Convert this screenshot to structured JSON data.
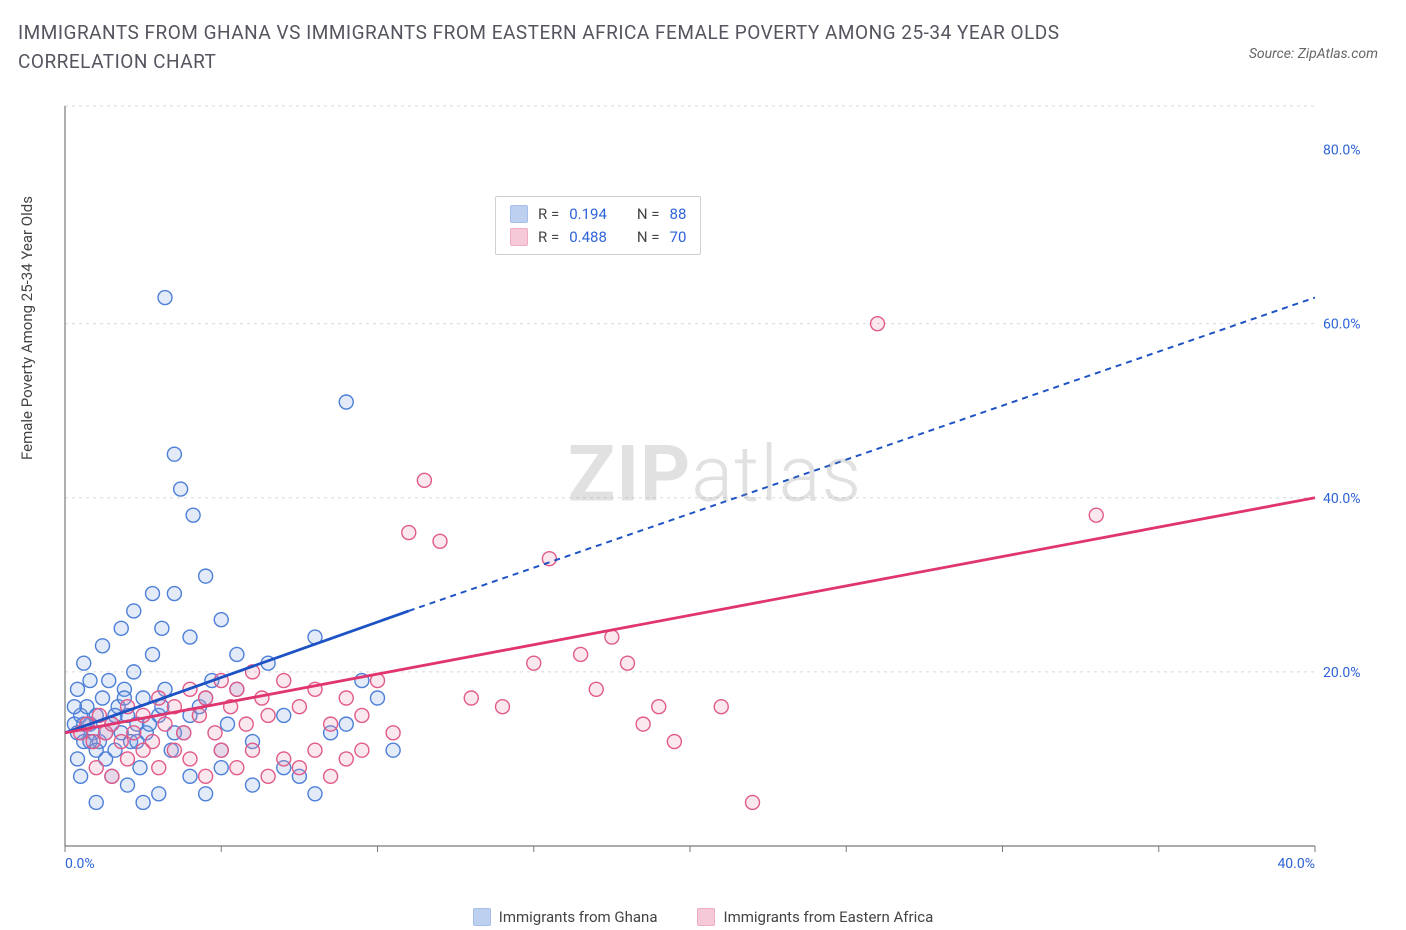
{
  "title": "IMMIGRANTS FROM GHANA VS IMMIGRANTS FROM EASTERN AFRICA FEMALE POVERTY AMONG 25-34 YEAR OLDS CORRELATION CHART",
  "source_label": "Source: ZipAtlas.com",
  "y_axis_label": "Female Poverty Among 25-34 Year Olds",
  "watermark_strong": "ZIP",
  "watermark_light": "atlas",
  "chart": {
    "type": "scatter",
    "background_color": "#ffffff",
    "grid_color": "#d8d8d8",
    "axis_color": "#7a7a7a",
    "tick_label_color": "#2e63d8",
    "xlim": [
      0,
      40
    ],
    "ylim": [
      0,
      85
    ],
    "x_ticks": [
      0,
      5,
      10,
      15,
      20,
      25,
      30,
      35,
      40
    ],
    "x_tick_labels": {
      "0": "0.0%",
      "40": "40.0%"
    },
    "y_grid_at": [
      20,
      40,
      60,
      85
    ],
    "y_tick_labels": {
      "20": "20.0%",
      "40": "40.0%",
      "60": "60.0%",
      "80": "80.0%"
    },
    "marker_radius": 7,
    "marker_stroke_width": 1.4,
    "marker_fill_opacity": 0.22,
    "trend_line_width": 2.8,
    "trend_dash": "6 5"
  },
  "series": [
    {
      "name": "Immigrants from Ghana",
      "color_stroke": "#4d7fd8",
      "color_fill": "#7ea3e3",
      "trend_color": "#1c52c4",
      "R": "0.194",
      "N": "88",
      "trend": {
        "x0": 0,
        "y0": 13,
        "x1_solid": 11,
        "y1_solid": 27,
        "x1_dash": 40,
        "y1_dash": 63
      },
      "points": [
        [
          0.3,
          14
        ],
        [
          0.4,
          13
        ],
        [
          0.5,
          15
        ],
        [
          0.6,
          12
        ],
        [
          0.7,
          16
        ],
        [
          0.8,
          14
        ],
        [
          0.9,
          13
        ],
        [
          1.0,
          15
        ],
        [
          1.1,
          12
        ],
        [
          1.2,
          17
        ],
        [
          1.3,
          10
        ],
        [
          1.4,
          19
        ],
        [
          1.5,
          14
        ],
        [
          1.6,
          11
        ],
        [
          1.7,
          16
        ],
        [
          1.8,
          13
        ],
        [
          1.9,
          18
        ],
        [
          2.0,
          15
        ],
        [
          2.1,
          12
        ],
        [
          2.2,
          20
        ],
        [
          2.3,
          14
        ],
        [
          2.4,
          9
        ],
        [
          2.5,
          17
        ],
        [
          2.6,
          13
        ],
        [
          2.8,
          22
        ],
        [
          3.0,
          15
        ],
        [
          3.1,
          25
        ],
        [
          3.2,
          18
        ],
        [
          3.4,
          11
        ],
        [
          3.5,
          29
        ],
        [
          3.7,
          41
        ],
        [
          3.8,
          13
        ],
        [
          4.0,
          24
        ],
        [
          4.1,
          38
        ],
        [
          4.3,
          16
        ],
        [
          4.5,
          31
        ],
        [
          4.7,
          19
        ],
        [
          5.0,
          26
        ],
        [
          5.2,
          14
        ],
        [
          5.5,
          22
        ],
        [
          3.2,
          63
        ],
        [
          3.5,
          45
        ],
        [
          4.0,
          8
        ],
        [
          4.5,
          6
        ],
        [
          5.0,
          9
        ],
        [
          5.5,
          18
        ],
        [
          6.0,
          12
        ],
        [
          6.5,
          21
        ],
        [
          7.0,
          15
        ],
        [
          7.5,
          8
        ],
        [
          8.0,
          24
        ],
        [
          8.5,
          13
        ],
        [
          9.0,
          51
        ],
        [
          9.5,
          19
        ],
        [
          10.0,
          17
        ],
        [
          10.5,
          11
        ],
        [
          2.0,
          7
        ],
        [
          2.5,
          5
        ],
        [
          3.0,
          6
        ],
        [
          1.5,
          8
        ],
        [
          1.0,
          5
        ],
        [
          0.8,
          19
        ],
        [
          0.6,
          21
        ],
        [
          0.5,
          8
        ],
        [
          0.4,
          10
        ],
        [
          1.2,
          23
        ],
        [
          1.8,
          25
        ],
        [
          2.2,
          27
        ],
        [
          2.8,
          29
        ],
        [
          0.3,
          16
        ],
        [
          0.4,
          18
        ],
        [
          0.6,
          14
        ],
        [
          0.8,
          12
        ],
        [
          1.0,
          11
        ],
        [
          1.3,
          13
        ],
        [
          1.6,
          15
        ],
        [
          1.9,
          17
        ],
        [
          2.3,
          12
        ],
        [
          2.7,
          14
        ],
        [
          3.1,
          16
        ],
        [
          3.5,
          13
        ],
        [
          4.0,
          15
        ],
        [
          4.5,
          17
        ],
        [
          5.0,
          11
        ],
        [
          6.0,
          7
        ],
        [
          7.0,
          9
        ],
        [
          8.0,
          6
        ],
        [
          9.0,
          14
        ]
      ]
    },
    {
      "name": "Immigrants from Eastern Africa",
      "color_stroke": "#e15b8a",
      "color_fill": "#ec95b3",
      "trend_color": "#e0356f",
      "R": "0.488",
      "N": "70",
      "trend": {
        "x0": 0,
        "y0": 13,
        "x1_solid": 40,
        "y1_solid": 40,
        "x1_dash": 40,
        "y1_dash": 40
      },
      "points": [
        [
          0.5,
          13
        ],
        [
          0.7,
          14
        ],
        [
          0.9,
          12
        ],
        [
          1.1,
          15
        ],
        [
          1.3,
          13
        ],
        [
          1.5,
          14
        ],
        [
          1.8,
          12
        ],
        [
          2.0,
          16
        ],
        [
          2.2,
          13
        ],
        [
          2.5,
          15
        ],
        [
          2.8,
          12
        ],
        [
          3.0,
          17
        ],
        [
          3.2,
          14
        ],
        [
          3.5,
          16
        ],
        [
          3.8,
          13
        ],
        [
          4.0,
          18
        ],
        [
          4.3,
          15
        ],
        [
          4.5,
          17
        ],
        [
          4.8,
          13
        ],
        [
          5.0,
          19
        ],
        [
          5.3,
          16
        ],
        [
          5.5,
          18
        ],
        [
          5.8,
          14
        ],
        [
          6.0,
          20
        ],
        [
          6.3,
          17
        ],
        [
          6.5,
          15
        ],
        [
          7.0,
          19
        ],
        [
          7.5,
          16
        ],
        [
          8.0,
          18
        ],
        [
          8.5,
          14
        ],
        [
          9.0,
          17
        ],
        [
          9.5,
          15
        ],
        [
          10.0,
          19
        ],
        [
          10.5,
          13
        ],
        [
          11.0,
          36
        ],
        [
          11.5,
          42
        ],
        [
          12.0,
          35
        ],
        [
          13.0,
          17
        ],
        [
          14.0,
          16
        ],
        [
          15.0,
          21
        ],
        [
          15.5,
          33
        ],
        [
          16.5,
          22
        ],
        [
          17.0,
          18
        ],
        [
          17.5,
          24
        ],
        [
          18.0,
          21
        ],
        [
          18.5,
          14
        ],
        [
          19.0,
          16
        ],
        [
          19.5,
          12
        ],
        [
          21.0,
          16
        ],
        [
          26.0,
          60
        ],
        [
          33.0,
          38
        ],
        [
          1.0,
          9
        ],
        [
          1.5,
          8
        ],
        [
          2.0,
          10
        ],
        [
          2.5,
          11
        ],
        [
          3.0,
          9
        ],
        [
          3.5,
          11
        ],
        [
          4.0,
          10
        ],
        [
          4.5,
          8
        ],
        [
          5.0,
          11
        ],
        [
          5.5,
          9
        ],
        [
          6.0,
          11
        ],
        [
          6.5,
          8
        ],
        [
          7.0,
          10
        ],
        [
          7.5,
          9
        ],
        [
          8.0,
          11
        ],
        [
          8.5,
          8
        ],
        [
          9.0,
          10
        ],
        [
          22.0,
          5
        ],
        [
          9.5,
          11
        ]
      ]
    }
  ],
  "legend": {
    "r_label": "R =",
    "n_label": "N ="
  },
  "bottom_legend": [
    {
      "label": "Immigrants from Ghana",
      "fill": "#7ea3e3",
      "stroke": "#4d7fd8"
    },
    {
      "label": "Immigrants from Eastern Africa",
      "fill": "#ec95b3",
      "stroke": "#e15b8a"
    }
  ]
}
